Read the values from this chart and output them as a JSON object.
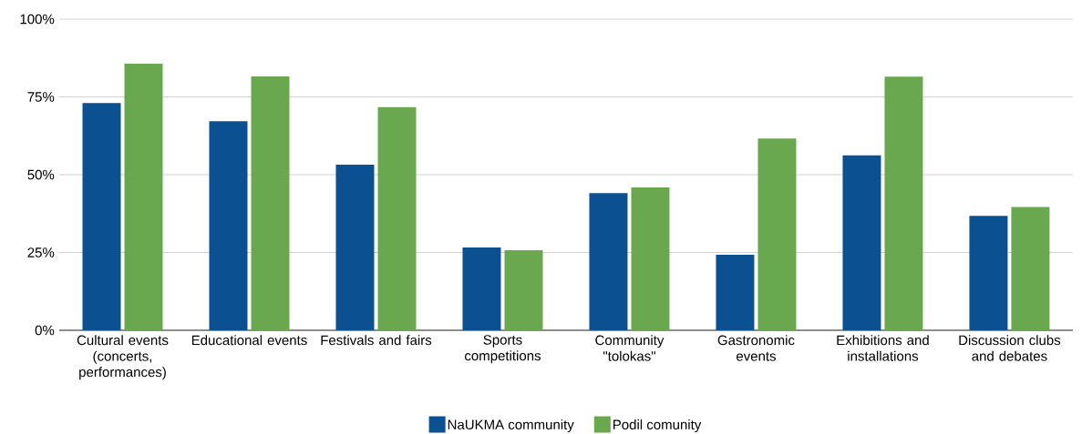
{
  "chart_data": {
    "type": "bar",
    "categories": [
      "Cultural events (concerts, performances)",
      "Educational events",
      "Festivals and fairs",
      "Sports competitions",
      "Community \"tolokas\"",
      "Gastronomic events",
      "Exhibitions and installations",
      "Discussion clubs and debates"
    ],
    "series": [
      {
        "name": "NaUKMA community",
        "color": "#0b5091",
        "values": [
          73.0,
          67.2,
          53.2,
          26.6,
          44.1,
          24.3,
          56.2,
          36.8
        ]
      },
      {
        "name": "Podil comunity",
        "color": "#6aa84f",
        "values": [
          85.7,
          81.6,
          71.7,
          25.7,
          45.9,
          61.6,
          81.5,
          39.6
        ]
      }
    ],
    "ylim": [
      0,
      100
    ],
    "yticks": [
      {
        "value": 0,
        "label": "0%"
      },
      {
        "value": 25,
        "label": "25%"
      },
      {
        "value": 50,
        "label": "50%"
      },
      {
        "value": 75,
        "label": "75%"
      },
      {
        "value": 100,
        "label": "100%"
      }
    ],
    "grid": "y",
    "legend": "bottom"
  }
}
